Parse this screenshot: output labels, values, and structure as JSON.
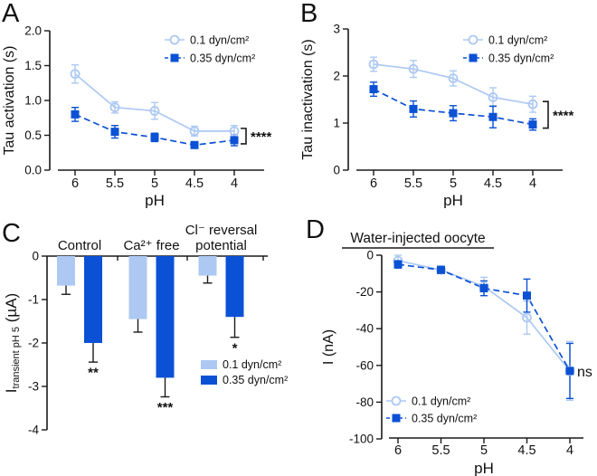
{
  "figure": {
    "background": "#ffffff"
  },
  "colors": {
    "series_light": "#adc9f3",
    "series_dark": "#0b51d5",
    "axis": "#1a1a1a",
    "bar_error": "#1a1a1a"
  },
  "chart_data": [
    {
      "letter": "A",
      "type": "line",
      "xlabel": "pH",
      "ylabel": "Tau activation (s)",
      "x_tick_labels": [
        "6",
        "5.5",
        "5",
        "4.5",
        "4"
      ],
      "ylim": [
        0,
        2
      ],
      "yticks": [
        0,
        0.5,
        1,
        1.5,
        2
      ],
      "ytick_labels": [
        "0.0",
        "0.5",
        "1.0",
        "1.5",
        "2.0"
      ],
      "legend": {
        "position": "top-right",
        "entries": [
          "0.1 dyn/cm²",
          "0.35 dyn/cm²"
        ]
      },
      "series": [
        {
          "name": "0.1 dyn/cm²",
          "key": "light",
          "marker": "open-circle",
          "line": "solid",
          "values": [
            1.38,
            0.9,
            0.85,
            0.56,
            0.56
          ],
          "errors": [
            0.13,
            0.08,
            0.12,
            0.07,
            0.08
          ]
        },
        {
          "name": "0.35 dyn/cm²",
          "key": "dark",
          "marker": "filled-square",
          "line": "dashed",
          "values": [
            0.8,
            0.55,
            0.47,
            0.36,
            0.43
          ],
          "errors": [
            0.1,
            0.09,
            0.06,
            0.04,
            0.08
          ]
        }
      ],
      "annotation": {
        "type": "bracket",
        "text": "****"
      }
    },
    {
      "letter": "B",
      "type": "line",
      "xlabel": "pH",
      "ylabel": "Tau inactivation (s)",
      "x_tick_labels": [
        "6",
        "5.5",
        "5",
        "4.5",
        "4"
      ],
      "ylim": [
        0,
        3
      ],
      "yticks": [
        0,
        1,
        2,
        3
      ],
      "ytick_labels": [
        "0",
        "1",
        "2",
        "3"
      ],
      "legend": {
        "position": "top-right",
        "entries": [
          "0.1 dyn/cm²",
          "0.35 dyn/cm²"
        ]
      },
      "series": [
        {
          "name": "0.1 dyn/cm²",
          "key": "light",
          "marker": "open-circle",
          "line": "solid",
          "values": [
            2.25,
            2.15,
            1.95,
            1.55,
            1.4
          ],
          "errors": [
            0.15,
            0.18,
            0.16,
            0.2,
            0.17
          ]
        },
        {
          "name": "0.35 dyn/cm²",
          "key": "dark",
          "marker": "filled-square",
          "line": "dashed",
          "values": [
            1.72,
            1.3,
            1.21,
            1.13,
            0.97
          ],
          "errors": [
            0.15,
            0.17,
            0.16,
            0.23,
            0.12
          ]
        }
      ],
      "annotation": {
        "type": "bracket",
        "text": "****"
      }
    },
    {
      "letter": "C",
      "type": "bar",
      "ylabel_parts": [
        {
          "text": "I",
          "style": "normal"
        },
        {
          "text": "transient pH 5",
          "style": "sub"
        },
        {
          "text": " (µA)",
          "style": "normal"
        }
      ],
      "categories": [
        "Control",
        "Ca²⁺ free",
        "Cl⁻ reversal potential"
      ],
      "category_lines": [
        [
          "Control"
        ],
        [
          "Ca²⁺ free"
        ],
        [
          "Cl⁻ reversal",
          "potential"
        ]
      ],
      "ylim": [
        -4,
        0
      ],
      "yticks": [
        0,
        -1,
        -2,
        -3,
        -4
      ],
      "ytick_labels": [
        "0",
        "-1",
        "-2",
        "-3",
        "-4"
      ],
      "legend": {
        "position": "bottom-right",
        "entries": [
          "0.1 dyn/cm²",
          "0.35 dyn/cm²"
        ]
      },
      "series": [
        {
          "name": "0.1 dyn/cm²",
          "key": "light",
          "values": [
            -0.68,
            -1.45,
            -0.45
          ],
          "errors": [
            0.2,
            0.3,
            0.17
          ],
          "significance": [
            "",
            "",
            ""
          ]
        },
        {
          "name": "0.35 dyn/cm²",
          "key": "dark",
          "values": [
            -2.0,
            -2.8,
            -1.4
          ],
          "errors": [
            0.44,
            0.44,
            0.47
          ],
          "significance": [
            "**",
            "***",
            "*"
          ]
        }
      ]
    },
    {
      "letter": "D",
      "type": "line",
      "title": "Water-injected oocyte",
      "xlabel": "pH",
      "ylabel": "I (nA)",
      "x_tick_labels": [
        "6",
        "5.5",
        "5",
        "4.5",
        "4"
      ],
      "ylim": [
        -100,
        0
      ],
      "yticks": [
        0,
        -20,
        -40,
        -60,
        -80,
        -100
      ],
      "ytick_labels": [
        "0",
        "-20",
        "-40",
        "-60",
        "-80",
        "-100"
      ],
      "legend": {
        "position": "bottom-left",
        "entries": [
          "0.1 dyn/cm²",
          "0.35 dyn/cm²"
        ]
      },
      "series": [
        {
          "name": "0.1 dyn/cm²",
          "key": "light",
          "marker": "open-circle",
          "line": "solid",
          "values": [
            -3,
            -8,
            -17,
            -34,
            -63
          ],
          "errors": [
            3,
            2,
            5,
            9,
            16
          ]
        },
        {
          "name": "0.35 dyn/cm²",
          "key": "dark",
          "marker": "filled-square",
          "line": "dashed",
          "values": [
            -5,
            -8,
            -18,
            -22,
            -63
          ],
          "errors": [
            2,
            2,
            4,
            9,
            15
          ]
        }
      ],
      "annotation": {
        "type": "text",
        "text": "ns"
      }
    }
  ]
}
